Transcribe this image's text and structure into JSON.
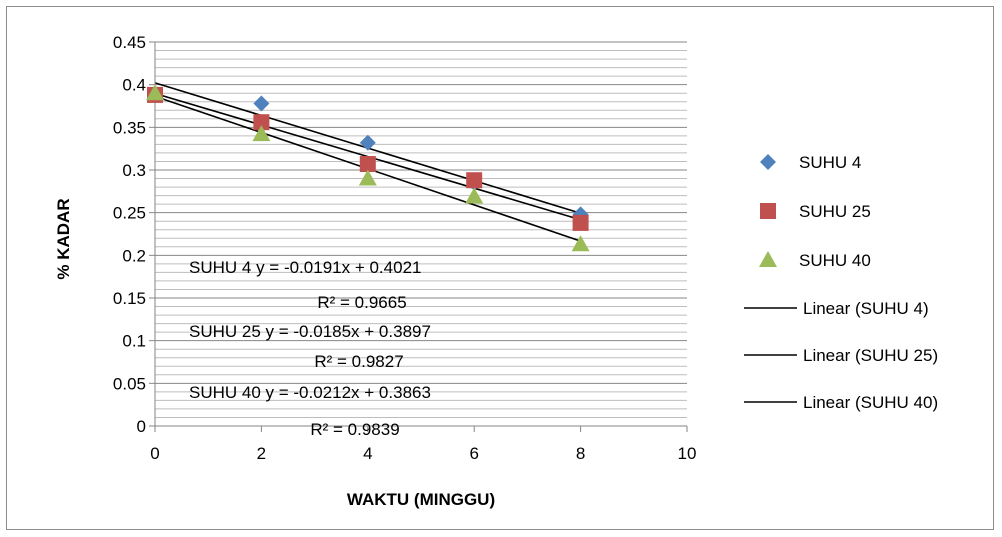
{
  "chart_data": {
    "type": "scatter",
    "title": "",
    "xlabel": "WAKTU (MINGGU)",
    "ylabel": "% KADAR",
    "xlim": [
      0,
      10
    ],
    "ylim": [
      0,
      0.45
    ],
    "x_ticks": [
      "0",
      "2",
      "4",
      "6",
      "8",
      "10"
    ],
    "y_ticks": [
      "0",
      "0.05",
      "0.1",
      "0.15",
      "0.2",
      "0.25",
      "0.3",
      "0.35",
      "0.4",
      "0.45"
    ],
    "grid": true,
    "legend_position": "right",
    "series": [
      {
        "name": "SUHU 4",
        "marker": "diamond",
        "color": "#4f81bd",
        "x": [
          0,
          2,
          4,
          6,
          8
        ],
        "y": [
          0.39,
          0.378,
          0.332,
          0.285,
          0.248
        ]
      },
      {
        "name": "SUHU 25",
        "marker": "square",
        "color": "#c0504d",
        "x": [
          0,
          2,
          4,
          6,
          8
        ],
        "y": [
          0.388,
          0.356,
          0.307,
          0.288,
          0.238
        ]
      },
      {
        "name": "SUHU 40",
        "marker": "triangle",
        "color": "#9bbb59",
        "x": [
          0,
          2,
          4,
          6,
          8
        ],
        "y": [
          0.39,
          0.342,
          0.29,
          0.269,
          0.213
        ]
      }
    ],
    "trendlines": [
      {
        "name": "Linear (SUHU 4)",
        "slope": -0.0191,
        "intercept": 0.4021,
        "color": "#000000"
      },
      {
        "name": "Linear (SUHU 25)",
        "slope": -0.0185,
        "intercept": 0.3897,
        "color": "#000000"
      },
      {
        "name": "Linear (SUHU 40)",
        "slope": -0.0212,
        "intercept": 0.3863,
        "color": "#000000"
      }
    ],
    "annotations": [
      "SUHU 4  y = -0.0191x + 0.4021",
      "R² = 0.9665",
      "SUHU 25  y = -0.0185x + 0.3897",
      "R² = 0.9827",
      "SUHU 40  y = -0.0212x + 0.3863",
      "R² = 0.9839"
    ]
  }
}
